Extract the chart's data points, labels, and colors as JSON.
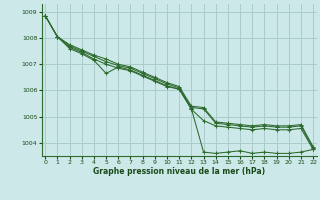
{
  "background_color": "#cce8e8",
  "grid_color": "#aacccc",
  "line_color": "#2d6a2d",
  "text_color": "#1a4a1a",
  "xlabel": "Graphe pression niveau de la mer (hPa)",
  "xlim": [
    -0.3,
    22.3
  ],
  "ylim": [
    1003.5,
    1009.3
  ],
  "yticks": [
    1004,
    1005,
    1006,
    1007,
    1008,
    1009
  ],
  "xticks": [
    0,
    1,
    2,
    3,
    4,
    5,
    6,
    7,
    8,
    9,
    10,
    11,
    12,
    13,
    14,
    15,
    16,
    17,
    18,
    19,
    20,
    21,
    22
  ],
  "series": [
    [
      1008.85,
      1008.05,
      1007.65,
      1007.45,
      1007.2,
      1007.0,
      1006.85,
      1006.75,
      1006.55,
      1006.35,
      1006.15,
      1006.05,
      1005.3,
      1003.65,
      1003.6,
      1003.65,
      1003.7,
      1003.6,
      1003.65,
      1003.6,
      1003.6,
      1003.65,
      1003.75
    ],
    [
      1008.85,
      1008.05,
      1007.7,
      1007.5,
      1007.3,
      1007.1,
      1006.95,
      1006.85,
      1006.65,
      1006.45,
      1006.25,
      1006.1,
      1005.35,
      1005.3,
      1004.75,
      1004.7,
      1004.65,
      1004.6,
      1004.65,
      1004.6,
      1004.6,
      1004.65,
      1003.8
    ],
    [
      1008.85,
      1008.05,
      1007.75,
      1007.55,
      1007.35,
      1007.2,
      1007.0,
      1006.9,
      1006.7,
      1006.5,
      1006.3,
      1006.15,
      1005.4,
      1005.35,
      1004.8,
      1004.75,
      1004.7,
      1004.65,
      1004.7,
      1004.65,
      1004.65,
      1004.7,
      1003.85
    ],
    [
      1008.85,
      1008.05,
      1007.6,
      1007.4,
      1007.15,
      1006.65,
      1006.9,
      1006.78,
      1006.58,
      1006.38,
      1006.18,
      1006.05,
      1005.28,
      1004.85,
      1004.65,
      1004.6,
      1004.55,
      1004.5,
      1004.55,
      1004.5,
      1004.5,
      1004.55,
      1003.75
    ]
  ]
}
